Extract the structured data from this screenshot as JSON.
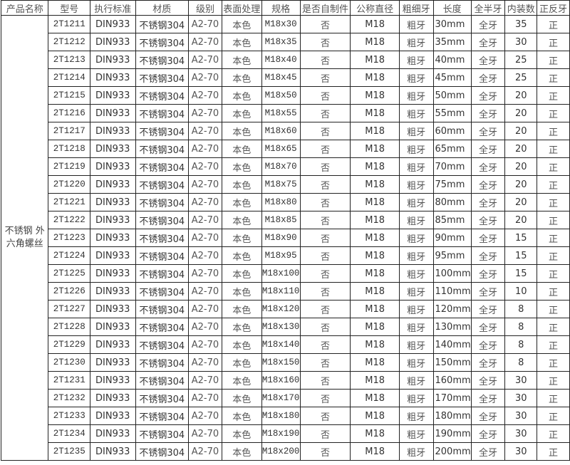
{
  "headers": [
    "产品名称",
    "型号",
    "执行标准",
    "材质",
    "级别",
    "表面处理",
    "规格",
    "是否自制件",
    "公称直径",
    "粗细牙",
    "长度",
    "全半牙",
    "内装数",
    "正反牙"
  ],
  "product_name": "不锈钢 外六角螺丝",
  "rows": [
    [
      "2T1211",
      "DIN933",
      "不锈钢304",
      "A2-70",
      "本色",
      "M18x30",
      "否",
      "M18",
      "粗牙",
      "30mm",
      "全牙",
      "35",
      "正"
    ],
    [
      "2T1212",
      "DIN933",
      "不锈钢304",
      "A2-70",
      "本色",
      "M18x35",
      "否",
      "M18",
      "粗牙",
      "35mm",
      "全牙",
      "30",
      "正"
    ],
    [
      "2T1213",
      "DIN933",
      "不锈钢304",
      "A2-70",
      "本色",
      "M18x40",
      "否",
      "M18",
      "粗牙",
      "40mm",
      "全牙",
      "25",
      "正"
    ],
    [
      "2T1214",
      "DIN933",
      "不锈钢304",
      "A2-70",
      "本色",
      "M18x45",
      "否",
      "M18",
      "粗牙",
      "45mm",
      "全牙",
      "25",
      "正"
    ],
    [
      "2T1215",
      "DIN933",
      "不锈钢304",
      "A2-70",
      "本色",
      "M18x50",
      "否",
      "M18",
      "粗牙",
      "50mm",
      "全牙",
      "20",
      "正"
    ],
    [
      "2T1216",
      "DIN933",
      "不锈钢304",
      "A2-70",
      "本色",
      "M18x55",
      "否",
      "M18",
      "粗牙",
      "55mm",
      "全牙",
      "20",
      "正"
    ],
    [
      "2T1217",
      "DIN933",
      "不锈钢304",
      "A2-70",
      "本色",
      "M18x60",
      "否",
      "M18",
      "粗牙",
      "60mm",
      "全牙",
      "20",
      "正"
    ],
    [
      "2T1218",
      "DIN933",
      "不锈钢304",
      "A2-70",
      "本色",
      "M18x65",
      "否",
      "M18",
      "粗牙",
      "65mm",
      "全牙",
      "20",
      "正"
    ],
    [
      "2T1219",
      "DIN933",
      "不锈钢304",
      "A2-70",
      "本色",
      "M18x70",
      "否",
      "M18",
      "粗牙",
      "70mm",
      "全牙",
      "20",
      "正"
    ],
    [
      "2T1220",
      "DIN933",
      "不锈钢304",
      "A2-70",
      "本色",
      "M18x75",
      "否",
      "M18",
      "粗牙",
      "75mm",
      "全牙",
      "20",
      "正"
    ],
    [
      "2T1221",
      "DIN933",
      "不锈钢304",
      "A2-70",
      "本色",
      "M18x80",
      "否",
      "M18",
      "粗牙",
      "80mm",
      "全牙",
      "20",
      "正"
    ],
    [
      "2T1222",
      "DIN933",
      "不锈钢304",
      "A2-70",
      "本色",
      "M18x85",
      "否",
      "M18",
      "粗牙",
      "85mm",
      "全牙",
      "20",
      "正"
    ],
    [
      "2T1223",
      "DIN933",
      "不锈钢304",
      "A2-70",
      "本色",
      "M18x90",
      "否",
      "M18",
      "粗牙",
      "90mm",
      "全牙",
      "15",
      "正"
    ],
    [
      "2T1224",
      "DIN933",
      "不锈钢304",
      "A2-70",
      "本色",
      "M18x95",
      "否",
      "M18",
      "粗牙",
      "95mm",
      "全牙",
      "15",
      "正"
    ],
    [
      "2T1225",
      "DIN933",
      "不锈钢304",
      "A2-70",
      "本色",
      "M18x100",
      "否",
      "M18",
      "粗牙",
      "100mm",
      "全牙",
      "15",
      "正"
    ],
    [
      "2T1226",
      "DIN933",
      "不锈钢304",
      "A2-70",
      "本色",
      "M18x110",
      "否",
      "M18",
      "粗牙",
      "110mm",
      "全牙",
      "10",
      "正"
    ],
    [
      "2T1227",
      "DIN933",
      "不锈钢304",
      "A2-70",
      "本色",
      "M18x120",
      "否",
      "M18",
      "粗牙",
      "120mm",
      "全牙",
      "8",
      "正"
    ],
    [
      "2T1228",
      "DIN933",
      "不锈钢304",
      "A2-70",
      "本色",
      "M18x130",
      "否",
      "M18",
      "粗牙",
      "130mm",
      "全牙",
      "8",
      "正"
    ],
    [
      "2T1229",
      "DIN933",
      "不锈钢304",
      "A2-70",
      "本色",
      "M18x140",
      "否",
      "M18",
      "粗牙",
      "140mm",
      "全牙",
      "8",
      "正"
    ],
    [
      "2T1230",
      "DIN933",
      "不锈钢304",
      "A2-70",
      "本色",
      "M18x150",
      "否",
      "M18",
      "粗牙",
      "150mm",
      "全牙",
      "8",
      "正"
    ],
    [
      "2T1231",
      "DIN933",
      "不锈钢304",
      "A2-70",
      "本色",
      "M18x160",
      "否",
      "M18",
      "粗牙",
      "160mm",
      "全牙",
      "30",
      "正"
    ],
    [
      "2T1232",
      "DIN933",
      "不锈钢304",
      "A2-70",
      "本色",
      "M18x170",
      "否",
      "M18",
      "粗牙",
      "170mm",
      "全牙",
      "30",
      "正"
    ],
    [
      "2T1233",
      "DIN933",
      "不锈钢304",
      "A2-70",
      "本色",
      "M18x180",
      "否",
      "M18",
      "粗牙",
      "180mm",
      "全牙",
      "30",
      "正"
    ],
    [
      "2T1234",
      "DIN933",
      "不锈钢304",
      "A2-70",
      "本色",
      "M18x190",
      "否",
      "M18",
      "粗牙",
      "190mm",
      "全牙",
      "30",
      "正"
    ],
    [
      "2T1235",
      "DIN933",
      "不锈钢304",
      "A2-70",
      "本色",
      "M18x200",
      "否",
      "M18",
      "粗牙",
      "200mm",
      "全牙",
      "30",
      "正"
    ]
  ]
}
